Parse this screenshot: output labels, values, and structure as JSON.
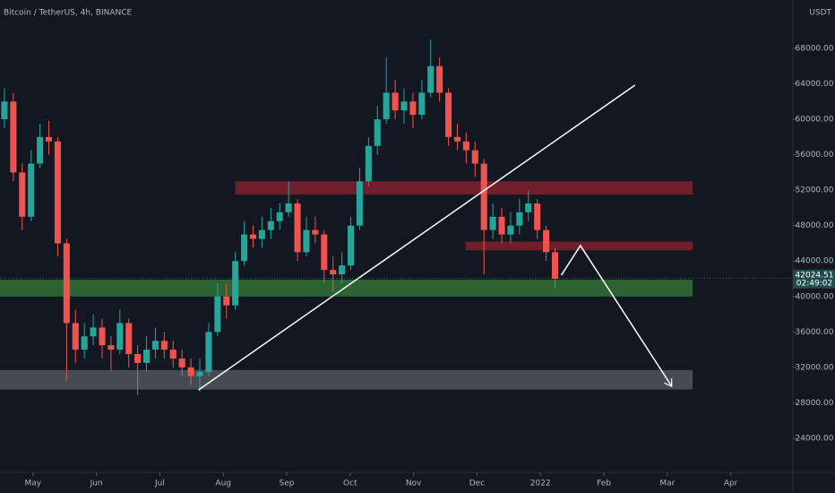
{
  "chart_data": {
    "type": "candlestick",
    "title": "Bitcoin / TetherUS, 4h, BINANCE",
    "currency": "USDT",
    "x": [
      -0.45,
      -0.31,
      -0.17,
      -0.03,
      0.11,
      0.25,
      0.39,
      0.53,
      0.67,
      0.81,
      0.95,
      1.09,
      1.23,
      1.37,
      1.51,
      1.65,
      1.79,
      1.93,
      2.07,
      2.21,
      2.35,
      2.49,
      2.63,
      2.77,
      2.91,
      3.05,
      3.19,
      3.33,
      3.47,
      3.61,
      3.75,
      3.89,
      4.03,
      4.17,
      4.31,
      4.45,
      4.59,
      4.73,
      4.87,
      5.01,
      5.15,
      5.29,
      5.43,
      5.57,
      5.71,
      5.85,
      5.99,
      6.13,
      6.27,
      6.41,
      6.55,
      6.69,
      6.83,
      6.97,
      7.11,
      7.25,
      7.39,
      7.53,
      7.67,
      7.81,
      7.95,
      8.09,
      8.23
    ],
    "open": [
      60000,
      62000,
      54000,
      49000,
      55000,
      58000,
      57500,
      46000,
      37000,
      34000,
      35500,
      36500,
      34500,
      34000,
      37000,
      33500,
      32500,
      34000,
      35000,
      34000,
      33000,
      32000,
      31000,
      31500,
      36000,
      40000,
      39000,
      44000,
      47000,
      46500,
      47500,
      48500,
      49500,
      50500,
      45000,
      47500,
      47000,
      43000,
      42500,
      43500,
      48000,
      53000,
      57000,
      60000,
      63000,
      61000,
      62000,
      60500,
      63000,
      66000,
      63000,
      58000,
      57500,
      56500,
      55000,
      47500,
      49000,
      47000,
      48000,
      49500,
      50500,
      47500,
      45000
    ],
    "high": [
      63500,
      63000,
      55000,
      56500,
      59500,
      59800,
      58000,
      46500,
      38500,
      37000,
      38000,
      37500,
      35500,
      38500,
      37500,
      34500,
      35500,
      36500,
      36000,
      35000,
      34000,
      33000,
      33000,
      37000,
      41500,
      41500,
      45000,
      48500,
      48000,
      49000,
      50000,
      50500,
      53000,
      51000,
      49000,
      49000,
      47500,
      44500,
      45000,
      49000,
      54500,
      58000,
      61500,
      67000,
      64500,
      63500,
      63000,
      64500,
      69000,
      67000,
      63500,
      59500,
      58500,
      57500,
      55500,
      50500,
      50000,
      49500,
      51000,
      52000,
      51000,
      48000,
      45500
    ],
    "low": [
      59000,
      53000,
      47500,
      48500,
      54500,
      56000,
      44500,
      30500,
      32500,
      33000,
      34500,
      33000,
      31500,
      33500,
      32000,
      28900,
      31500,
      33000,
      33000,
      32000,
      31000,
      30000,
      29300,
      31000,
      35500,
      37500,
      38500,
      43500,
      45500,
      45500,
      46500,
      47500,
      49000,
      44000,
      44500,
      46000,
      41500,
      40500,
      41500,
      43000,
      47500,
      52500,
      56000,
      59500,
      60000,
      59500,
      59000,
      60000,
      62500,
      62000,
      57000,
      56500,
      55000,
      53500,
      42500,
      46500,
      46000,
      46000,
      47000,
      48500,
      46500,
      44000,
      41000
    ],
    "close": [
      62000,
      54000,
      49000,
      55000,
      58000,
      57500,
      46000,
      37000,
      34000,
      35500,
      36500,
      34500,
      34000,
      37000,
      33500,
      32500,
      34000,
      35000,
      34000,
      33000,
      32000,
      31000,
      31500,
      36000,
      40000,
      39000,
      44000,
      47000,
      46500,
      47500,
      48500,
      49500,
      50500,
      45000,
      47500,
      47000,
      43000,
      42500,
      43500,
      48000,
      53000,
      57000,
      60000,
      63000,
      61000,
      62000,
      60500,
      63000,
      66000,
      63000,
      58000,
      57500,
      56500,
      55000,
      47500,
      49000,
      47000,
      48000,
      49500,
      50500,
      47500,
      45000,
      42000
    ],
    "up_color": "#26a69a",
    "down_color": "#ef5350",
    "xlim": [
      -0.52,
      11.98
    ],
    "ylim": [
      20150,
      73460
    ],
    "xticks": [
      {
        "value": 0,
        "label": "May"
      },
      {
        "value": 1,
        "label": "Jun"
      },
      {
        "value": 2,
        "label": "Jul"
      },
      {
        "value": 3,
        "label": "Aug"
      },
      {
        "value": 4,
        "label": "Sep"
      },
      {
        "value": 5,
        "label": "Oct"
      },
      {
        "value": 6,
        "label": "Nov"
      },
      {
        "value": 7,
        "label": "Dec"
      },
      {
        "value": 8,
        "label": "2022"
      },
      {
        "value": 9,
        "label": "Feb"
      },
      {
        "value": 10,
        "label": "Mar"
      },
      {
        "value": 11,
        "label": "Apr"
      }
    ],
    "yticks": [
      {
        "value": 24000,
        "label": "24000.00"
      },
      {
        "value": 28000,
        "label": "28000.00"
      },
      {
        "value": 32000,
        "label": "32000.00"
      },
      {
        "value": 36000,
        "label": "36000.00"
      },
      {
        "value": 40000,
        "label": "40000.00"
      },
      {
        "value": 44000,
        "label": "44000.00"
      },
      {
        "value": 48000,
        "label": "48000.00"
      },
      {
        "value": 52000,
        "label": "52000.00"
      },
      {
        "value": 56000,
        "label": "56000.00"
      },
      {
        "value": 60000,
        "label": "60000.00"
      },
      {
        "value": 64000,
        "label": "64000.00"
      },
      {
        "value": 68000,
        "label": "68000.00"
      }
    ],
    "grid": false,
    "last_price": 42024.51,
    "countdown": "02:49:02",
    "zones": [
      {
        "x": [
          3.19,
          10.4
        ],
        "y": [
          51500,
          53000
        ],
        "color": "#7a1f2e"
      },
      {
        "x": [
          6.82,
          10.4
        ],
        "y": [
          45200,
          46200
        ],
        "color": "#7a1f2e"
      },
      {
        "x": [
          -0.52,
          10.4
        ],
        "y": [
          40000,
          41900
        ],
        "color": "#2f6b35"
      },
      {
        "x": [
          -0.52,
          10.4
        ],
        "y": [
          29500,
          31700
        ],
        "color": "#4d5058"
      }
    ],
    "lines": [
      {
        "x": [
          2.61,
          9.49
        ],
        "y": [
          29460,
          63850
        ],
        "color": "#ffffff",
        "arrow": false
      },
      {
        "x": [
          8.33,
          8.63,
          10.07
        ],
        "y": [
          42410,
          45750,
          29860
        ],
        "color": "#ffffff",
        "arrow": true
      }
    ]
  }
}
